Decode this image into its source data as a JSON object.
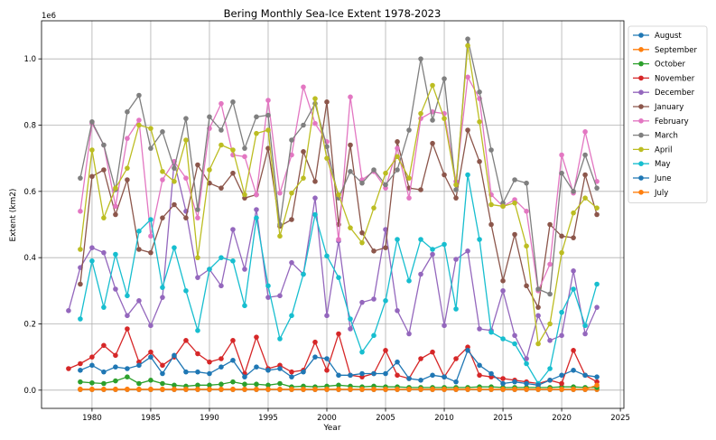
{
  "chart_data": {
    "type": "line",
    "title": "Bering Monthly Sea-Ice Extent 1978-2023",
    "xlabel": "Year",
    "ylabel": "Extent (km2)",
    "y_offset_text": "1e6",
    "xlim": [
      1975.7,
      2025.3
    ],
    "ylim": [
      -55000,
      1115000
    ],
    "x_ticks": [
      1980,
      1985,
      1990,
      1995,
      2000,
      2005,
      2010,
      2015,
      2020,
      2025
    ],
    "y_ticks": [
      0,
      200000,
      400000,
      600000,
      800000,
      1000000
    ],
    "y_tick_labels": [
      "0.0",
      "0.2",
      "0.4",
      "0.6",
      "0.8",
      "1.0"
    ],
    "grid": true,
    "legend_position": "outside-right",
    "series": [
      {
        "name": "August",
        "color": "#1f77b4",
        "x_start": 1979,
        "values": [
          2000,
          2000,
          2000,
          2000,
          2000,
          2000,
          2000,
          2000,
          2000,
          2000,
          2000,
          2000,
          2000,
          2000,
          2000,
          2000,
          2000,
          2000,
          2000,
          2000,
          2000,
          2000,
          2000,
          2000,
          2000,
          2000,
          2000,
          2000,
          2000,
          2000,
          2000,
          2000,
          2000,
          2000,
          2000,
          2000,
          2000,
          2000,
          2000,
          2000,
          2000,
          2000,
          2000,
          2000,
          2000
        ]
      },
      {
        "name": "September",
        "color": "#ff7f0e",
        "x_start": 1979,
        "values": [
          2000,
          2000,
          2000,
          2000,
          2000,
          2000,
          2000,
          2000,
          2000,
          2000,
          2000,
          2000,
          2000,
          2000,
          2000,
          2000,
          2000,
          2000,
          2000,
          2000,
          2000,
          2000,
          2000,
          2000,
          2000,
          2000,
          2000,
          2000,
          2000,
          2000,
          2000,
          2000,
          2000,
          2000,
          2000,
          2000,
          2000,
          2000,
          2000,
          2000,
          2000,
          2000,
          2000,
          2000,
          2000
        ]
      },
      {
        "name": "October",
        "color": "#2ca02c",
        "x_start": 1979,
        "values": [
          25000,
          22000,
          20000,
          28000,
          40000,
          20000,
          30000,
          20000,
          15000,
          12000,
          15000,
          15000,
          18000,
          25000,
          18000,
          18000,
          15000,
          20000,
          10000,
          12000,
          10000,
          12000,
          15000,
          12000,
          10000,
          12000,
          10000,
          10000,
          8000,
          8000,
          8000,
          8000,
          8000,
          8000,
          10000,
          10000,
          8000,
          8000,
          8000,
          8000,
          8000,
          10000,
          10000,
          8000,
          8000
        ]
      },
      {
        "name": "November",
        "color": "#d62728",
        "x_start": 1978,
        "values": [
          65000,
          80000,
          100000,
          135000,
          105000,
          185000,
          85000,
          115000,
          75000,
          100000,
          150000,
          110000,
          85000,
          95000,
          150000,
          50000,
          160000,
          65000,
          75000,
          55000,
          60000,
          145000,
          60000,
          170000,
          45000,
          40000,
          50000,
          120000,
          45000,
          35000,
          95000,
          115000,
          40000,
          95000,
          130000,
          45000,
          40000,
          35000,
          30000,
          25000,
          20000,
          30000,
          20000,
          120000,
          45000,
          25000
        ]
      },
      {
        "name": "December",
        "color": "#9467bd",
        "x_start": 1978,
        "values": [
          240000,
          370000,
          430000,
          415000,
          305000,
          225000,
          270000,
          195000,
          280000,
          690000,
          540000,
          340000,
          365000,
          315000,
          485000,
          365000,
          545000,
          280000,
          285000,
          385000,
          350000,
          580000,
          225000,
          450000,
          185000,
          265000,
          275000,
          485000,
          240000,
          170000,
          350000,
          410000,
          195000,
          395000,
          420000,
          185000,
          180000,
          300000,
          165000,
          95000,
          225000,
          150000,
          165000,
          360000,
          170000,
          250000
        ]
      },
      {
        "name": "January",
        "color": "#8c564b",
        "x_start": 1979,
        "values": [
          320000,
          645000,
          665000,
          530000,
          635000,
          425000,
          415000,
          520000,
          560000,
          520000,
          680000,
          625000,
          610000,
          655000,
          580000,
          590000,
          730000,
          495000,
          515000,
          720000,
          630000,
          870000,
          500000,
          740000,
          475000,
          420000,
          430000,
          750000,
          610000,
          605000,
          745000,
          650000,
          580000,
          785000,
          690000,
          500000,
          330000,
          470000,
          315000,
          250000,
          500000,
          465000,
          460000,
          650000,
          530000
        ]
      },
      {
        "name": "February",
        "color": "#e377c2",
        "x_start": 1979,
        "values": [
          540000,
          805000,
          740000,
          555000,
          760000,
          815000,
          465000,
          635000,
          690000,
          640000,
          520000,
          790000,
          865000,
          710000,
          705000,
          590000,
          875000,
          595000,
          710000,
          915000,
          805000,
          750000,
          455000,
          885000,
          635000,
          660000,
          610000,
          730000,
          580000,
          820000,
          840000,
          835000,
          630000,
          945000,
          880000,
          590000,
          555000,
          575000,
          540000,
          300000,
          380000,
          710000,
          595000,
          780000,
          630000
        ]
      },
      {
        "name": "March",
        "color": "#7f7f7f",
        "x_start": 1979,
        "values": [
          640000,
          810000,
          740000,
          605000,
          840000,
          890000,
          730000,
          780000,
          670000,
          820000,
          545000,
          825000,
          785000,
          870000,
          730000,
          825000,
          830000,
          500000,
          755000,
          800000,
          865000,
          735000,
          580000,
          660000,
          625000,
          665000,
          620000,
          665000,
          785000,
          1000000,
          815000,
          940000,
          605000,
          1060000,
          900000,
          725000,
          565000,
          635000,
          625000,
          305000,
          290000,
          655000,
          600000,
          710000,
          610000
        ]
      },
      {
        "name": "April",
        "color": "#bcbd22",
        "x_start": 1979,
        "values": [
          425000,
          725000,
          520000,
          610000,
          670000,
          800000,
          790000,
          660000,
          630000,
          755000,
          400000,
          665000,
          740000,
          725000,
          590000,
          775000,
          785000,
          465000,
          595000,
          640000,
          880000,
          700000,
          590000,
          490000,
          445000,
          550000,
          655000,
          705000,
          640000,
          835000,
          920000,
          820000,
          620000,
          1040000,
          810000,
          560000,
          555000,
          565000,
          435000,
          140000,
          200000,
          415000,
          535000,
          580000,
          550000
        ]
      },
      {
        "name": "May",
        "color": "#17becf",
        "x_start": 1979,
        "values": [
          215000,
          390000,
          250000,
          410000,
          285000,
          480000,
          515000,
          310000,
          430000,
          300000,
          180000,
          365000,
          400000,
          390000,
          255000,
          520000,
          315000,
          155000,
          225000,
          350000,
          530000,
          405000,
          340000,
          215000,
          115000,
          165000,
          270000,
          455000,
          330000,
          455000,
          425000,
          440000,
          245000,
          650000,
          455000,
          175000,
          155000,
          140000,
          80000,
          20000,
          65000,
          235000,
          305000,
          195000,
          320000
        ]
      },
      {
        "name": "June",
        "color": "#1f77b4",
        "x_start": 1979,
        "values": [
          60000,
          75000,
          55000,
          70000,
          65000,
          75000,
          100000,
          50000,
          105000,
          55000,
          55000,
          50000,
          70000,
          90000,
          40000,
          70000,
          60000,
          65000,
          40000,
          55000,
          100000,
          95000,
          45000,
          45000,
          50000,
          50000,
          50000,
          85000,
          35000,
          30000,
          45000,
          40000,
          25000,
          120000,
          75000,
          50000,
          20000,
          25000,
          20000,
          15000,
          30000,
          45000,
          60000,
          45000,
          40000
        ]
      },
      {
        "name": "July",
        "color": "#ff7f0e",
        "x_start": 1979,
        "values": [
          3000,
          3000,
          3000,
          3000,
          3000,
          3000,
          3000,
          3000,
          3000,
          3000,
          3000,
          3000,
          3000,
          3000,
          3000,
          3000,
          3000,
          3000,
          3000,
          3000,
          3000,
          3000,
          3000,
          3000,
          3000,
          3000,
          3000,
          3000,
          3000,
          3000,
          3000,
          3000,
          3000,
          3000,
          3000,
          3000,
          3000,
          3000,
          3000,
          3000,
          3000,
          3000,
          3000,
          3000,
          15000
        ]
      }
    ]
  }
}
